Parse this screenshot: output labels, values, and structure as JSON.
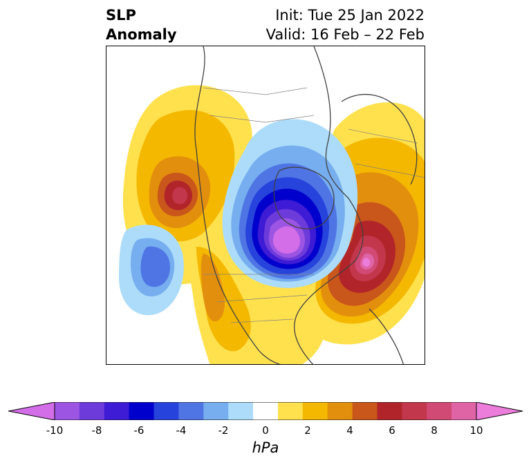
{
  "title": {
    "variable": "SLP",
    "subtitle": "Anomaly",
    "init": "Init: Tue 25 Jan 2022",
    "valid": "Valid: 16 Feb – 22 Feb"
  },
  "colorbar": {
    "unit": "hPa",
    "levels": [
      -10,
      -9,
      -8,
      -7,
      -6,
      -5,
      -4,
      -3,
      -2,
      -1,
      1,
      2,
      3,
      4,
      5,
      6,
      7,
      8,
      9,
      10
    ],
    "colors": [
      "#d36ee8",
      "#9b55e2",
      "#6e3bdb",
      "#3e1bd4",
      "#0000cd",
      "#2643dc",
      "#4f75e4",
      "#76aeef",
      "#acdcf9",
      "#ffffff",
      "#ffe14d",
      "#f5b800",
      "#e38f0e",
      "#c9561a",
      "#b1242a",
      "#c3374c",
      "#d14a75",
      "#df64a6",
      "#ec7ddb"
    ],
    "tick_labels": [
      "-10",
      "-8",
      "-6",
      "-4",
      "-2",
      "0",
      "2",
      "4",
      "6",
      "8",
      "10"
    ],
    "extend": "both"
  },
  "colors": {
    "land_outline": "#404040",
    "border": "#808080"
  }
}
